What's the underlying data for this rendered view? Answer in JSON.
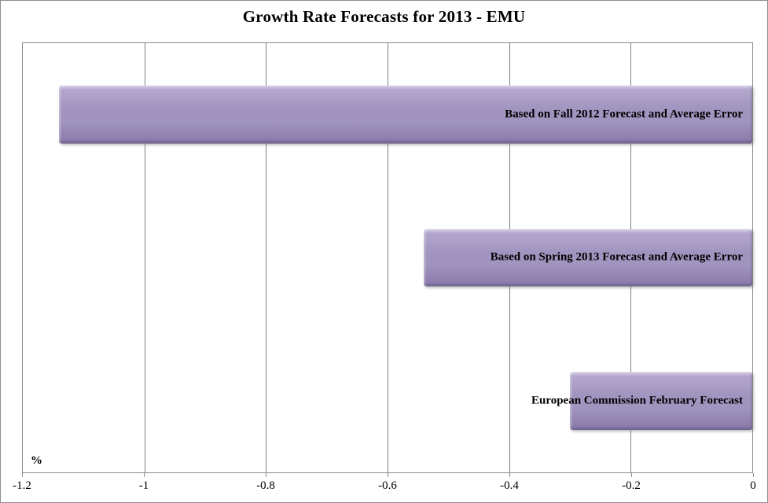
{
  "title": "Growth Rate Forecasts for 2013 - EMU",
  "axis": {
    "unit_label": "%"
  },
  "colors": {
    "bar_highlight": "#d9d0e6",
    "bar_light": "#b4a7ce",
    "bar_base": "#a195c0",
    "bar_dark": "#8e7ead",
    "bar_edge": "#6f6390",
    "gridline": "#7f7f7f",
    "plot_border": "#8c8c8c",
    "outer_border": "#8f8f8f",
    "text": "#000000"
  },
  "chart_data": {
    "type": "bar",
    "orientation": "horizontal",
    "title": "Growth Rate Forecasts for 2013 - EMU",
    "xlabel": "%",
    "ylabel": "",
    "categories": [
      "Based on Fall 2012 Forecast and Average Error",
      "Based on Spring 2013 Forecast and Average Error",
      "European Commission February Forecast"
    ],
    "values": [
      -1.14,
      -0.54,
      -0.3
    ],
    "xlim": [
      -1.2,
      0
    ],
    "xticks": [
      -1.2,
      -1,
      -0.8,
      -0.6,
      -0.4,
      -0.2,
      0
    ],
    "xtick_labels": [
      "-1.2",
      "-1",
      "-0.8",
      "-0.6",
      "-0.4",
      "-0.2",
      "0"
    ],
    "grid": true,
    "gridlines": "vertical",
    "legend": false,
    "bar_labels_position": "inside-end",
    "bar_color": "#a195c0"
  }
}
